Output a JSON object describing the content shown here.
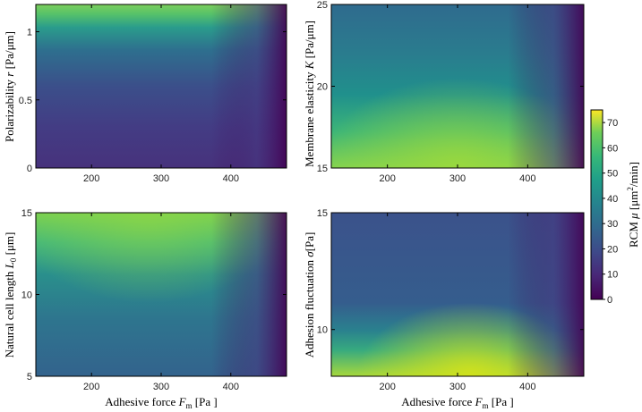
{
  "chart_data": [
    {
      "type": "heatmap",
      "panel": "top-left",
      "xlabel": "",
      "ylabel": "Polarizability r [Pa/μm]",
      "xlim": [
        120,
        480
      ],
      "ylim": [
        0,
        1.2
      ],
      "xticks": [
        200,
        300,
        400
      ],
      "yticks": [
        0,
        0.5,
        1
      ],
      "ytick_labels": [
        "0",
        "0.5",
        "1"
      ],
      "values_approx": "RCM high (~55-65) at r near 1.1-1.2 across Fm 120-420, falling to ~10 at r below 0.5; lowest (~2-5) at Fm > 440"
    },
    {
      "type": "heatmap",
      "panel": "top-right",
      "xlabel": "",
      "ylabel": "Membrane elasticity K [Pa/μm]",
      "xlim": [
        120,
        480
      ],
      "ylim": [
        15,
        25
      ],
      "xticks": [
        200,
        300,
        400
      ],
      "yticks": [
        15,
        20,
        25
      ],
      "ytick_labels": [
        "15",
        "20",
        "25"
      ],
      "values_approx": "peak RCM ~55 near K=15, Fm~280-320; decreasing with K to ~20 at K=25; ~2 at Fm > 450"
    },
    {
      "type": "heatmap",
      "panel": "bottom-left",
      "xlabel": "Adhesive force F_m [Pa ]",
      "ylabel": "Natural cell length L_0 [μm]",
      "xlim": [
        120,
        480
      ],
      "ylim": [
        5,
        15
      ],
      "xticks": [
        200,
        300,
        400
      ],
      "yticks": [
        5,
        10,
        15
      ],
      "ytick_labels": [
        "5",
        "10",
        "15"
      ],
      "values_approx": "RCM ~55-60 at L0 near 14-15 for Fm 120-400; ~25-30 at L0 = 5; ~5 at Fm > 440"
    },
    {
      "type": "heatmap",
      "panel": "bottom-right",
      "xlabel": "Adhesive force F_m [Pa ]",
      "ylabel": "Adhesion fluctuation σ[Pa]",
      "xlim": [
        120,
        480
      ],
      "ylim": [
        8,
        15
      ],
      "xticks": [
        200,
        300,
        400
      ],
      "yticks": [
        10,
        15
      ],
      "ytick_labels": [
        "10",
        "15"
      ],
      "values_approx": "peak RCM ~65-70 near σ=8, Fm~300-350; drops to ~20 by σ=10; ~10-15 at σ=15"
    }
  ],
  "colorbar": {
    "label": "RCM μ [μm²/min]",
    "min": 0,
    "max": 75,
    "ticks": [
      0,
      10,
      20,
      30,
      40,
      50,
      60,
      70
    ],
    "colormap": "viridis"
  },
  "text": {
    "tl_ylabel_main": "Polarizability ",
    "tl_ylabel_var": "r",
    "tl_ylabel_unit": " [Pa/μm]",
    "tr_ylabel_main": "Membrane elasticity ",
    "tr_ylabel_var": "K",
    "tr_ylabel_unit": " [Pa/μm]",
    "bl_ylabel_main": "Natural cell length ",
    "bl_ylabel_var": "L",
    "bl_ylabel_sub": "0",
    "bl_ylabel_unit": " [μm]",
    "br_ylabel_main": "Adhesion fluctuation ",
    "br_ylabel_var": "σ",
    "br_ylabel_unit": "[Pa]",
    "xlabel_main": "Adhesive force ",
    "xlabel_var": "F",
    "xlabel_sub": "m",
    "xlabel_unit": " [Pa ]",
    "cbar_label_main": "RCM ",
    "cbar_label_var": "μ",
    "cbar_label_unit_a": " [μm",
    "cbar_label_sup": "2",
    "cbar_label_unit_b": "/min]"
  }
}
